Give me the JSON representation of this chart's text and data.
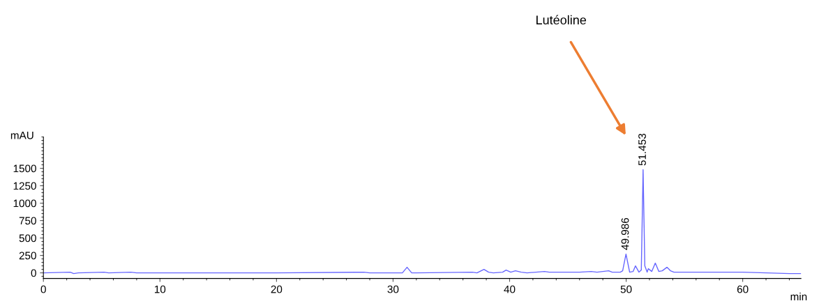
{
  "chart_data": {
    "type": "line",
    "xlabel": "min",
    "ylabel": "mAU",
    "x": [
      0,
      2.3,
      2.6,
      3,
      5.2,
      5.6,
      7.5,
      8,
      10,
      17,
      20,
      27.5,
      28,
      30.8,
      31.2,
      31.6,
      32,
      36.8,
      37.2,
      37.8,
      38.2,
      38.6,
      39.4,
      39.7,
      40.1,
      40.5,
      41,
      41.5,
      43,
      43.4,
      45,
      46,
      47,
      47.5,
      48.5,
      48.8,
      49.5,
      49.7,
      49.986,
      50.3,
      50.6,
      50.8,
      51.1,
      51.3,
      51.453,
      51.6,
      51.8,
      51.9,
      52.2,
      52.5,
      52.8,
      53.1,
      53.5,
      53.8,
      54.1,
      55,
      56,
      58,
      60,
      62,
      64,
      65
    ],
    "series": [
      {
        "color": "#6666ff",
        "values": [
          0,
          10,
          -10,
          0,
          10,
          0,
          10,
          0,
          0,
          0,
          0,
          10,
          0,
          0,
          80,
          0,
          0,
          10,
          0,
          50,
          10,
          0,
          10,
          40,
          10,
          30,
          10,
          0,
          20,
          10,
          10,
          10,
          20,
          10,
          30,
          10,
          10,
          30,
          270,
          10,
          20,
          100,
          10,
          40,
          1480,
          100,
          10,
          60,
          20,
          140,
          20,
          30,
          80,
          30,
          10,
          10,
          10,
          10,
          10,
          0,
          -10,
          -10
        ]
      }
    ],
    "xlim": [
      0,
      65
    ],
    "xticks": [
      0,
      10,
      20,
      30,
      40,
      50,
      60
    ],
    "ylim": [
      -80,
      1950
    ],
    "yticks": [
      0,
      250,
      500,
      750,
      1000,
      1250,
      1500
    ],
    "grid": false,
    "marker": "none",
    "line_style": "solid",
    "annotations": [
      "Lutéoline",
      {
        "text": "49.986",
        "x": 49.986,
        "y": 270
      },
      {
        "text": "51.453",
        "x": 51.453,
        "y": 1480
      }
    ]
  }
}
